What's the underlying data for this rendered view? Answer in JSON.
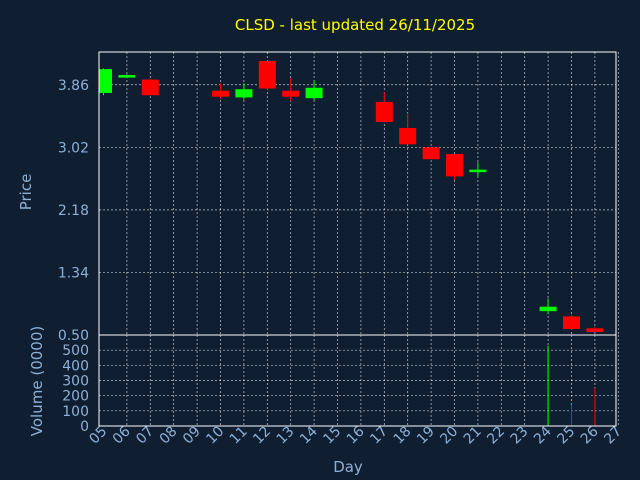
{
  "chart_data": {
    "type": "candlestick",
    "title": "CLSD - last updated 26/11/2025",
    "xlabel": "Day",
    "price_panel": {
      "ylabel": "Price",
      "yticks": [
        "3.86",
        "3.02",
        "2.18",
        "1.34",
        "0.50"
      ],
      "ytick_values": [
        3.86,
        3.02,
        2.18,
        1.34,
        0.5
      ],
      "ylim": [
        0.5,
        4.3
      ],
      "grid": true
    },
    "volume_panel": {
      "ylabel": "Volume (0000)",
      "yticks": [
        "0",
        "100",
        "200",
        "300",
        "400",
        "500"
      ],
      "ytick_values": [
        0,
        100,
        200,
        300,
        400,
        500
      ],
      "ylim": [
        0,
        600
      ],
      "grid": true
    },
    "x_ticks": [
      "05",
      "06",
      "07",
      "08",
      "09",
      "10",
      "11",
      "12",
      "13",
      "14",
      "15",
      "16",
      "17",
      "18",
      "19",
      "20",
      "21",
      "22",
      "23",
      "24",
      "25",
      "26",
      "27"
    ],
    "colors": {
      "background": "#0f1e30",
      "up": "#00ff00",
      "down": "#ff0000",
      "title": "#ffff00",
      "axis_text": "#8fb0d6",
      "grid": "#ffffff"
    },
    "candles": [
      {
        "day": "05",
        "open": 3.75,
        "high": 4.08,
        "low": 3.72,
        "close": 4.07,
        "volume": 0
      },
      {
        "day": "06",
        "open": 3.97,
        "high": 4.0,
        "low": 3.95,
        "close": 3.99,
        "volume": 0
      },
      {
        "day": "07",
        "open": 3.93,
        "high": 3.94,
        "low": 3.72,
        "close": 3.72,
        "volume": 0
      },
      {
        "day": "10",
        "open": 3.78,
        "high": 3.88,
        "low": 3.67,
        "close": 3.7,
        "volume": 0
      },
      {
        "day": "11",
        "open": 3.69,
        "high": 3.88,
        "low": 3.66,
        "close": 3.8,
        "volume": 0
      },
      {
        "day": "12",
        "open": 4.18,
        "high": 4.18,
        "low": 3.78,
        "close": 3.81,
        "volume": 0
      },
      {
        "day": "13",
        "open": 3.78,
        "high": 3.95,
        "low": 3.64,
        "close": 3.7,
        "volume": 0
      },
      {
        "day": "14",
        "open": 3.68,
        "high": 3.91,
        "low": 3.65,
        "close": 3.82,
        "volume": 0
      },
      {
        "day": "17",
        "open": 3.63,
        "high": 3.76,
        "low": 3.35,
        "close": 3.36,
        "volume": 0
      },
      {
        "day": "18",
        "open": 3.28,
        "high": 3.48,
        "low": 3.06,
        "close": 3.06,
        "volume": 0
      },
      {
        "day": "19",
        "open": 3.02,
        "high": 3.02,
        "low": 2.86,
        "close": 2.86,
        "volume": 0
      },
      {
        "day": "20",
        "open": 2.93,
        "high": 2.93,
        "low": 2.58,
        "close": 2.63,
        "volume": 0
      },
      {
        "day": "21",
        "open": 2.69,
        "high": 2.82,
        "low": 2.62,
        "close": 2.72,
        "volume": 0
      },
      {
        "day": "24",
        "open": 0.82,
        "high": 0.99,
        "low": 0.78,
        "close": 0.88,
        "volume": 530
      },
      {
        "day": "25",
        "open": 0.75,
        "high": 0.77,
        "low": 0.57,
        "close": 0.58,
        "volume": 140
      },
      {
        "day": "26",
        "open": 0.59,
        "high": 0.61,
        "low": 0.54,
        "close": 0.54,
        "volume": 250
      }
    ]
  }
}
